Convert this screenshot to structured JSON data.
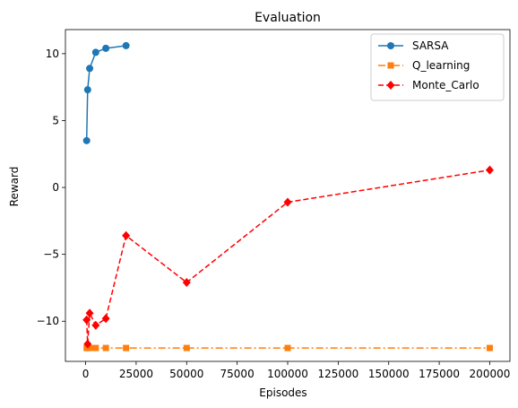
{
  "chart_data": {
    "type": "line",
    "title": "Evaluation",
    "xlabel": "Episodes",
    "ylabel": "Reward",
    "xlim": [
      -10000,
      210000
    ],
    "ylim": [
      -13,
      11.8
    ],
    "xticks": [
      0,
      25000,
      50000,
      75000,
      100000,
      125000,
      150000,
      175000,
      200000
    ],
    "xtick_labels": [
      "0",
      "25000",
      "50000",
      "75000",
      "100000",
      "125000",
      "150000",
      "175000",
      "200000"
    ],
    "yticks": [
      -10,
      -5,
      0,
      5,
      10
    ],
    "ytick_labels": [
      "−10",
      "−5",
      "0",
      "5",
      "10"
    ],
    "grid": false,
    "legend_position": "top-right",
    "series": [
      {
        "name": "SARSA",
        "color": "#1f77b4",
        "linestyle": "solid",
        "marker": "circle",
        "x": [
          500,
          1000,
          2000,
          5000,
          10000,
          20000
        ],
        "y": [
          3.5,
          7.3,
          8.9,
          10.1,
          10.4,
          10.6
        ]
      },
      {
        "name": "Q_learning",
        "color": "#ff7f0e",
        "linestyle": "dashdot",
        "marker": "square",
        "x": [
          500,
          1000,
          2000,
          5000,
          10000,
          20000,
          50000,
          100000,
          200000
        ],
        "y": [
          -12,
          -12,
          -12,
          -12,
          -12,
          -12,
          -12,
          -12,
          -12
        ]
      },
      {
        "name": "Monte_Carlo",
        "color": "#ff0000",
        "linestyle": "dashed",
        "marker": "diamond",
        "x": [
          500,
          1000,
          2000,
          5000,
          10000,
          20000,
          50000,
          100000,
          200000
        ],
        "y": [
          -9.9,
          -11.7,
          -9.4,
          -10.3,
          -9.8,
          -3.6,
          -7.1,
          -1.1,
          1.3
        ]
      }
    ]
  }
}
